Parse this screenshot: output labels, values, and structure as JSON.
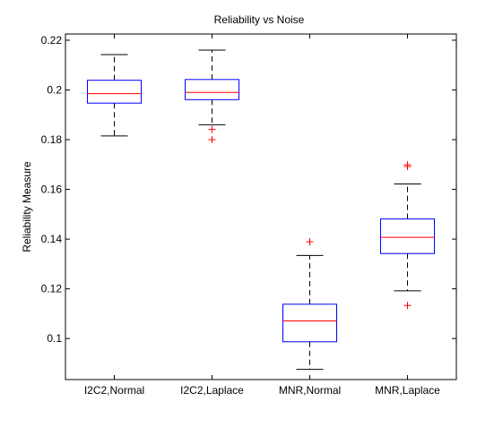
{
  "chart_data": {
    "type": "boxplot",
    "title": "Reliability vs Noise",
    "xlabel": "",
    "ylabel": "Reliability Measure",
    "ylim": [
      0.0835,
      0.2225
    ],
    "yticks": [
      "0.1",
      "0.12",
      "0.14",
      "0.16",
      "0.18",
      "0.2",
      "0.22"
    ],
    "grid": false,
    "categories": [
      "I2C2,Normal",
      "I2C2,Laplace",
      "MNR,Normal",
      "MNR,Laplace"
    ],
    "boxes": [
      {
        "name": "I2C2,Normal",
        "whisker_low": 0.1815,
        "q1": 0.1947,
        "median": 0.1985,
        "q3": 0.2039,
        "whisker_high": 0.2142,
        "outliers": []
      },
      {
        "name": "I2C2,Laplace",
        "whisker_low": 0.186,
        "q1": 0.1961,
        "median": 0.199,
        "q3": 0.2042,
        "whisker_high": 0.216,
        "outliers": [
          0.1841,
          0.18
        ]
      },
      {
        "name": "MNR,Normal",
        "whisker_low": 0.0876,
        "q1": 0.0987,
        "median": 0.1071,
        "q3": 0.1138,
        "whisker_high": 0.1334,
        "outliers": [
          0.1389
        ]
      },
      {
        "name": "MNR,Laplace",
        "whisker_low": 0.1192,
        "q1": 0.1342,
        "median": 0.1407,
        "q3": 0.1481,
        "whisker_high": 0.1622,
        "outliers": [
          0.1699,
          0.1692,
          0.1133
        ]
      }
    ],
    "colors": {
      "box": "#0000ff",
      "median": "#ff0000",
      "whisker": "#000000",
      "outlier": "#ff0000",
      "axes": "#000000"
    }
  }
}
